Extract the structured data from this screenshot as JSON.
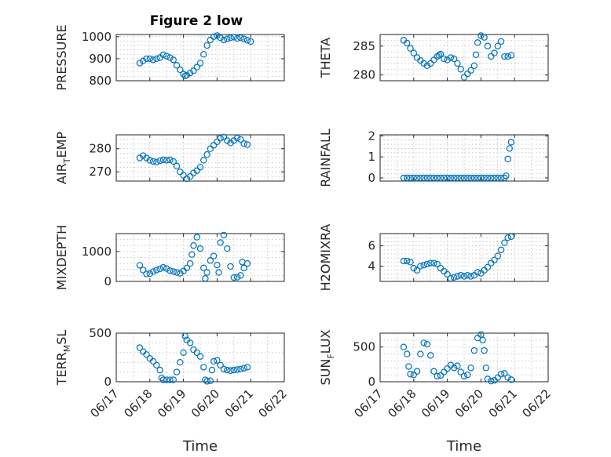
{
  "figure": {
    "title": "Figure 2 low"
  },
  "chart_data": [
    {
      "type": "scatter",
      "name_key": "pressure",
      "ylabel": "PRESSURE",
      "sub": "",
      "xlabel": "",
      "ylim": [
        800,
        1010
      ],
      "yticks": [
        800,
        900,
        1000
      ],
      "grid": true,
      "points": [
        [
          0,
          880
        ],
        [
          0.1,
          890
        ],
        [
          0.2,
          900
        ],
        [
          0.3,
          900
        ],
        [
          0.4,
          895
        ],
        [
          0.5,
          900
        ],
        [
          0.6,
          905
        ],
        [
          0.7,
          918
        ],
        [
          0.8,
          912
        ],
        [
          0.9,
          905
        ],
        [
          1.0,
          895
        ],
        [
          1.1,
          870
        ],
        [
          1.2,
          850
        ],
        [
          1.3,
          830
        ],
        [
          1.35,
          822
        ],
        [
          1.4,
          825
        ],
        [
          1.5,
          835
        ],
        [
          1.6,
          845
        ],
        [
          1.7,
          862
        ],
        [
          1.8,
          880
        ],
        [
          1.9,
          920
        ],
        [
          2.0,
          960
        ],
        [
          2.1,
          985
        ],
        [
          2.2,
          1000
        ],
        [
          2.3,
          1005
        ],
        [
          2.4,
          995
        ],
        [
          2.5,
          985
        ],
        [
          2.6,
          990
        ],
        [
          2.7,
          995
        ],
        [
          2.8,
          998
        ],
        [
          2.9,
          992
        ],
        [
          3.0,
          995
        ],
        [
          3.1,
          990
        ],
        [
          3.2,
          984
        ],
        [
          3.3,
          978
        ]
      ]
    },
    {
      "type": "scatter",
      "name_key": "theta",
      "ylabel": "THETA",
      "sub": "",
      "xlabel": "",
      "ylim": [
        279,
        287
      ],
      "yticks": [
        280,
        285
      ],
      "grid": true,
      "points": [
        [
          0,
          286
        ],
        [
          0.1,
          285.5
        ],
        [
          0.2,
          284.6
        ],
        [
          0.3,
          283.8
        ],
        [
          0.4,
          283
        ],
        [
          0.5,
          282.5
        ],
        [
          0.6,
          282
        ],
        [
          0.7,
          281.6
        ],
        [
          0.8,
          282
        ],
        [
          0.9,
          282.6
        ],
        [
          1.0,
          283.2
        ],
        [
          1.05,
          283.4
        ],
        [
          1.1,
          283.6
        ],
        [
          1.2,
          282.8
        ],
        [
          1.3,
          282.6
        ],
        [
          1.4,
          283
        ],
        [
          1.5,
          282.8
        ],
        [
          1.6,
          282
        ],
        [
          1.7,
          281
        ],
        [
          1.8,
          279.6
        ],
        [
          1.9,
          280.2
        ],
        [
          2.0,
          280.8
        ],
        [
          2.1,
          281.6
        ],
        [
          2.15,
          283.5
        ],
        [
          2.2,
          285.6
        ],
        [
          2.3,
          286.8
        ],
        [
          2.4,
          286.5
        ],
        [
          2.5,
          285
        ],
        [
          2.6,
          283.2
        ],
        [
          2.7,
          283.8
        ],
        [
          2.8,
          285
        ],
        [
          2.9,
          285.8
        ],
        [
          3.0,
          283.2
        ],
        [
          3.1,
          283.2
        ],
        [
          3.2,
          283.4
        ]
      ]
    },
    {
      "type": "scatter",
      "name_key": "air_temp",
      "ylabel": "AIR",
      "sub": "T",
      "ylabel_tail": "EMP",
      "xlabel": "",
      "ylim": [
        266,
        286
      ],
      "yticks": [
        270,
        280
      ],
      "grid": true,
      "points": [
        [
          0,
          276
        ],
        [
          0.1,
          277
        ],
        [
          0.2,
          276
        ],
        [
          0.3,
          275
        ],
        [
          0.4,
          274.5
        ],
        [
          0.5,
          274.2
        ],
        [
          0.6,
          274.8
        ],
        [
          0.7,
          275.2
        ],
        [
          0.8,
          275
        ],
        [
          0.9,
          275.2
        ],
        [
          1.0,
          274.5
        ],
        [
          1.1,
          272.5
        ],
        [
          1.2,
          270
        ],
        [
          1.3,
          268.5
        ],
        [
          1.4,
          267
        ],
        [
          1.5,
          268
        ],
        [
          1.6,
          269.5
        ],
        [
          1.7,
          270.5
        ],
        [
          1.8,
          272
        ],
        [
          1.9,
          275
        ],
        [
          2.0,
          277.5
        ],
        [
          2.1,
          280
        ],
        [
          2.2,
          281.5
        ],
        [
          2.3,
          283
        ],
        [
          2.4,
          284.5
        ],
        [
          2.5,
          285
        ],
        [
          2.6,
          283.5
        ],
        [
          2.7,
          282.5
        ],
        [
          2.8,
          283.5
        ],
        [
          2.9,
          284.6
        ],
        [
          3.0,
          284
        ],
        [
          3.1,
          282.2
        ],
        [
          3.2,
          281.8
        ]
      ]
    },
    {
      "type": "scatter",
      "name_key": "rainfall",
      "ylabel": "RAINFALL",
      "sub": "",
      "xlabel": "",
      "ylim": [
        -0.15,
        2.05
      ],
      "yticks": [
        0,
        1,
        2
      ],
      "grid": true,
      "points": [
        [
          0,
          0
        ],
        [
          0.1,
          0
        ],
        [
          0.2,
          0
        ],
        [
          0.3,
          0
        ],
        [
          0.4,
          0
        ],
        [
          0.5,
          0
        ],
        [
          0.6,
          0
        ],
        [
          0.7,
          0
        ],
        [
          0.8,
          0
        ],
        [
          0.9,
          0
        ],
        [
          1.0,
          0
        ],
        [
          1.1,
          0
        ],
        [
          1.2,
          0
        ],
        [
          1.3,
          0
        ],
        [
          1.4,
          0
        ],
        [
          1.5,
          0
        ],
        [
          1.6,
          0
        ],
        [
          1.7,
          0
        ],
        [
          1.8,
          0
        ],
        [
          1.9,
          0
        ],
        [
          2.0,
          0
        ],
        [
          2.1,
          0
        ],
        [
          2.2,
          0
        ],
        [
          2.3,
          0
        ],
        [
          2.4,
          0
        ],
        [
          2.5,
          0
        ],
        [
          2.6,
          0
        ],
        [
          2.7,
          0
        ],
        [
          2.8,
          0
        ],
        [
          2.9,
          0
        ],
        [
          3.0,
          0
        ],
        [
          3.05,
          0.1
        ],
        [
          3.1,
          0.9
        ],
        [
          3.15,
          1.4
        ],
        [
          3.2,
          1.7
        ]
      ]
    },
    {
      "type": "scatter",
      "name_key": "mixdepth",
      "ylabel": "MIXDEPTH",
      "sub": "",
      "xlabel": "",
      "ylim": [
        0,
        1600
      ],
      "yticks": [
        0,
        1000
      ],
      "grid": true,
      "points": [
        [
          0,
          540
        ],
        [
          0.1,
          380
        ],
        [
          0.2,
          250
        ],
        [
          0.3,
          260
        ],
        [
          0.4,
          330
        ],
        [
          0.5,
          380
        ],
        [
          0.6,
          420
        ],
        [
          0.7,
          470
        ],
        [
          0.8,
          430
        ],
        [
          0.9,
          360
        ],
        [
          1.0,
          330
        ],
        [
          1.1,
          300
        ],
        [
          1.2,
          270
        ],
        [
          1.3,
          350
        ],
        [
          1.4,
          450
        ],
        [
          1.5,
          600
        ],
        [
          1.55,
          900
        ],
        [
          1.6,
          1200
        ],
        [
          1.7,
          1480
        ],
        [
          1.8,
          1100
        ],
        [
          1.9,
          450
        ],
        [
          1.95,
          100
        ],
        [
          2.0,
          300
        ],
        [
          2.1,
          700
        ],
        [
          2.2,
          850
        ],
        [
          2.3,
          550
        ],
        [
          2.35,
          300
        ],
        [
          2.4,
          1300
        ],
        [
          2.5,
          1550
        ],
        [
          2.6,
          1100
        ],
        [
          2.7,
          500
        ],
        [
          2.8,
          130
        ],
        [
          2.9,
          140
        ],
        [
          3.0,
          200
        ],
        [
          3.05,
          650
        ],
        [
          3.1,
          450
        ],
        [
          3.2,
          600
        ]
      ]
    },
    {
      "type": "scatter",
      "name_key": "h2omixra",
      "ylabel": "H2OMIXRA",
      "sub": "",
      "xlabel": "",
      "ylim": [
        2.5,
        7.2
      ],
      "yticks": [
        4,
        6
      ],
      "grid": true,
      "points": [
        [
          0,
          4.5
        ],
        [
          0.1,
          4.5
        ],
        [
          0.2,
          4.4
        ],
        [
          0.3,
          3.8
        ],
        [
          0.4,
          3.6
        ],
        [
          0.5,
          4.0
        ],
        [
          0.6,
          4.1
        ],
        [
          0.7,
          4.2
        ],
        [
          0.8,
          4.3
        ],
        [
          0.9,
          4.3
        ],
        [
          1.0,
          4.2
        ],
        [
          1.1,
          3.8
        ],
        [
          1.2,
          3.5
        ],
        [
          1.3,
          3.2
        ],
        [
          1.4,
          2.8
        ],
        [
          1.5,
          2.9
        ],
        [
          1.6,
          3.0
        ],
        [
          1.7,
          3.1
        ],
        [
          1.8,
          3.0
        ],
        [
          1.9,
          3.1
        ],
        [
          2.0,
          3.0
        ],
        [
          2.1,
          3.1
        ],
        [
          2.2,
          3.4
        ],
        [
          2.3,
          3.3
        ],
        [
          2.4,
          3.6
        ],
        [
          2.5,
          3.9
        ],
        [
          2.6,
          4.3
        ],
        [
          2.7,
          4.6
        ],
        [
          2.8,
          5.0
        ],
        [
          2.9,
          5.6
        ],
        [
          3.0,
          6.3
        ],
        [
          3.1,
          6.8
        ],
        [
          3.2,
          6.9
        ]
      ]
    },
    {
      "type": "scatter",
      "name_key": "terr_msl",
      "ylabel": "TERR",
      "sub": "M",
      "ylabel_tail": "SL",
      "xlabel": "Time",
      "ylim": [
        0,
        500
      ],
      "yticks": [
        0,
        500
      ],
      "grid": true,
      "points": [
        [
          0,
          350
        ],
        [
          0.1,
          310
        ],
        [
          0.2,
          280
        ],
        [
          0.3,
          240
        ],
        [
          0.4,
          210
        ],
        [
          0.5,
          170
        ],
        [
          0.6,
          120
        ],
        [
          0.65,
          40
        ],
        [
          0.7,
          20
        ],
        [
          0.8,
          20
        ],
        [
          0.9,
          20
        ],
        [
          1.0,
          20
        ],
        [
          1.1,
          100
        ],
        [
          1.2,
          200
        ],
        [
          1.3,
          300
        ],
        [
          1.35,
          470
        ],
        [
          1.4,
          430
        ],
        [
          1.5,
          400
        ],
        [
          1.6,
          330
        ],
        [
          1.7,
          300
        ],
        [
          1.8,
          260
        ],
        [
          1.9,
          150
        ],
        [
          1.95,
          20
        ],
        [
          2.0,
          5
        ],
        [
          2.1,
          10
        ],
        [
          2.15,
          120
        ],
        [
          2.2,
          210
        ],
        [
          2.3,
          220
        ],
        [
          2.4,
          170
        ],
        [
          2.5,
          130
        ],
        [
          2.6,
          120
        ],
        [
          2.7,
          115
        ],
        [
          2.8,
          120
        ],
        [
          2.9,
          125
        ],
        [
          3.0,
          130
        ],
        [
          3.1,
          140
        ],
        [
          3.2,
          150
        ]
      ]
    },
    {
      "type": "scatter",
      "name_key": "sun_flux",
      "ylabel": "SUN",
      "sub": "F",
      "ylabel_tail": "LUX",
      "xlabel": "Time",
      "ylim": [
        0,
        700
      ],
      "yticks": [
        0,
        500
      ],
      "grid": true,
      "points": [
        [
          0,
          500
        ],
        [
          0.1,
          400
        ],
        [
          0.15,
          220
        ],
        [
          0.2,
          110
        ],
        [
          0.3,
          100
        ],
        [
          0.4,
          150
        ],
        [
          0.5,
          400
        ],
        [
          0.6,
          560
        ],
        [
          0.7,
          540
        ],
        [
          0.8,
          380
        ],
        [
          0.9,
          150
        ],
        [
          1.0,
          80
        ],
        [
          1.1,
          90
        ],
        [
          1.2,
          140
        ],
        [
          1.3,
          190
        ],
        [
          1.4,
          240
        ],
        [
          1.5,
          200
        ],
        [
          1.6,
          230
        ],
        [
          1.7,
          140
        ],
        [
          1.8,
          80
        ],
        [
          1.9,
          100
        ],
        [
          2.0,
          200
        ],
        [
          2.1,
          450
        ],
        [
          2.2,
          630
        ],
        [
          2.3,
          680
        ],
        [
          2.35,
          600
        ],
        [
          2.4,
          450
        ],
        [
          2.45,
          200
        ],
        [
          2.5,
          40
        ],
        [
          2.6,
          10
        ],
        [
          2.7,
          20
        ],
        [
          2.8,
          60
        ],
        [
          2.9,
          110
        ],
        [
          3.0,
          120
        ],
        [
          3.1,
          60
        ],
        [
          3.2,
          30
        ]
      ]
    }
  ],
  "x_axis": {
    "tick_labels": [
      "06/17",
      "06/18",
      "06/19",
      "06/20",
      "06/21",
      "06/22"
    ],
    "range_days": [
      0,
      5
    ],
    "data_offset_days": 0.7
  }
}
